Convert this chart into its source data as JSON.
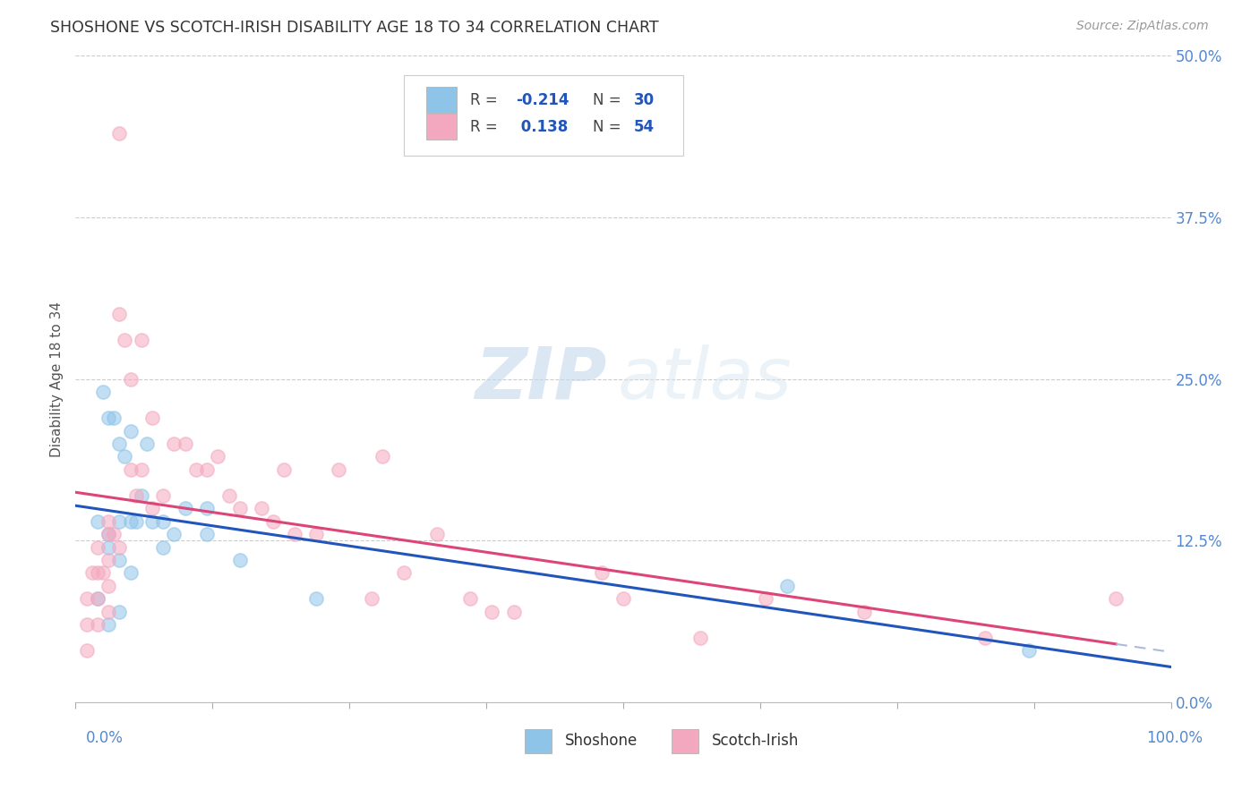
{
  "title": "SHOSHONE VS SCOTCH-IRISH DISABILITY AGE 18 TO 34 CORRELATION CHART",
  "source": "Source: ZipAtlas.com",
  "ylabel": "Disability Age 18 to 34",
  "xlim": [
    0.0,
    1.0
  ],
  "ylim": [
    -0.02,
    0.52
  ],
  "plot_ylim": [
    0.0,
    0.5
  ],
  "yticks": [
    0.0,
    0.125,
    0.25,
    0.375,
    0.5
  ],
  "ytick_labels": [
    "0.0%",
    "12.5%",
    "25.0%",
    "37.5%",
    "50.0%"
  ],
  "xticks": [
    0.0,
    1.0
  ],
  "xtick_labels": [
    "0.0%",
    "100.0%"
  ],
  "watermark_zip": "ZIP",
  "watermark_atlas": "atlas",
  "shoshone_color": "#8ec4e8",
  "scotch_color": "#f4a8bf",
  "trend_blue": "#2255bb",
  "trend_pink": "#dd4477",
  "trend_dash_color": "#aabbdd",
  "background_color": "#ffffff",
  "grid_color": "#cccccc",
  "title_color": "#333333",
  "axis_label_color": "#555555",
  "right_label_color": "#5588cc",
  "legend_r1_val": "-0.214",
  "legend_n1_val": "30",
  "legend_r2_val": "0.138",
  "legend_n2_val": "54",
  "shoshone_x": [
    0.02,
    0.02,
    0.025,
    0.03,
    0.03,
    0.03,
    0.03,
    0.035,
    0.04,
    0.04,
    0.04,
    0.04,
    0.045,
    0.05,
    0.05,
    0.05,
    0.055,
    0.06,
    0.065,
    0.07,
    0.08,
    0.08,
    0.09,
    0.1,
    0.12,
    0.12,
    0.15,
    0.22,
    0.65,
    0.87
  ],
  "shoshone_y": [
    0.14,
    0.08,
    0.24,
    0.22,
    0.13,
    0.12,
    0.06,
    0.22,
    0.2,
    0.14,
    0.11,
    0.07,
    0.19,
    0.21,
    0.14,
    0.1,
    0.14,
    0.16,
    0.2,
    0.14,
    0.14,
    0.12,
    0.13,
    0.15,
    0.15,
    0.13,
    0.11,
    0.08,
    0.09,
    0.04
  ],
  "scotch_x": [
    0.01,
    0.01,
    0.01,
    0.015,
    0.02,
    0.02,
    0.02,
    0.02,
    0.025,
    0.03,
    0.03,
    0.03,
    0.03,
    0.03,
    0.035,
    0.04,
    0.04,
    0.04,
    0.045,
    0.05,
    0.05,
    0.055,
    0.06,
    0.06,
    0.07,
    0.07,
    0.08,
    0.09,
    0.1,
    0.11,
    0.12,
    0.13,
    0.14,
    0.15,
    0.17,
    0.18,
    0.19,
    0.2,
    0.22,
    0.24,
    0.27,
    0.28,
    0.3,
    0.33,
    0.36,
    0.38,
    0.4,
    0.48,
    0.5,
    0.57,
    0.63,
    0.72,
    0.83,
    0.95
  ],
  "scotch_y": [
    0.08,
    0.06,
    0.04,
    0.1,
    0.12,
    0.1,
    0.08,
    0.06,
    0.1,
    0.14,
    0.13,
    0.11,
    0.09,
    0.07,
    0.13,
    0.44,
    0.3,
    0.12,
    0.28,
    0.25,
    0.18,
    0.16,
    0.28,
    0.18,
    0.22,
    0.15,
    0.16,
    0.2,
    0.2,
    0.18,
    0.18,
    0.19,
    0.16,
    0.15,
    0.15,
    0.14,
    0.18,
    0.13,
    0.13,
    0.18,
    0.08,
    0.19,
    0.1,
    0.13,
    0.08,
    0.07,
    0.07,
    0.1,
    0.08,
    0.05,
    0.08,
    0.07,
    0.05,
    0.08
  ]
}
